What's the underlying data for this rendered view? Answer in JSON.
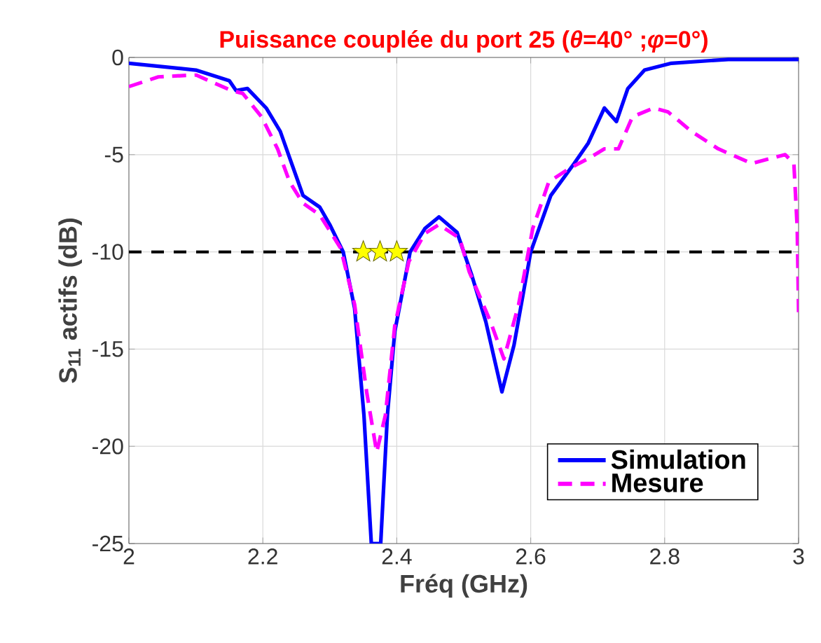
{
  "chart_data": {
    "type": "line",
    "title": "Puissance couplée  du port 25 (*θ*=40° ;*φ*=0°)",
    "xlabel": "Fréq (GHz)",
    "ylabel": "S$_{11}$ actifs (dB)",
    "xlim": [
      2,
      3
    ],
    "ylim": [
      -25,
      0
    ],
    "xticks": [
      2,
      2.2,
      2.4,
      2.6,
      2.8,
      3
    ],
    "yticks": [
      -25,
      -20,
      -15,
      -10,
      -5,
      0
    ],
    "grid": true,
    "legend": "bottom right",
    "ref_lines": [
      {
        "axis": "y",
        "value": -10,
        "color": "#000000",
        "line_style": "dashed"
      }
    ],
    "series": [
      {
        "name": "Simulation",
        "color": "#0000ff",
        "line_style": "solid",
        "x": [
          2.0,
          2.1,
          2.15,
          2.16,
          2.177,
          2.205,
          2.226,
          2.243,
          2.26,
          2.285,
          2.3,
          2.32,
          2.337,
          2.351,
          2.362,
          2.376,
          2.386,
          2.397,
          2.42,
          2.442,
          2.463,
          2.49,
          2.512,
          2.533,
          2.557,
          2.575,
          2.6,
          2.63,
          2.665,
          2.686,
          2.71,
          2.728,
          2.745,
          2.77,
          2.81,
          2.895,
          3.0
        ],
        "values": [
          -0.3,
          -0.65,
          -1.2,
          -1.7,
          -1.6,
          -2.6,
          -3.8,
          -5.45,
          -7.1,
          -7.7,
          -8.6,
          -10.0,
          -12.9,
          -18.4,
          -25,
          -25,
          -18.4,
          -14.1,
          -10.0,
          -8.8,
          -8.2,
          -9.0,
          -11.2,
          -13.6,
          -17.2,
          -14.8,
          -10.0,
          -7.1,
          -5.45,
          -4.4,
          -2.6,
          -3.3,
          -1.6,
          -0.65,
          -0.3,
          -0.1,
          -0.1
        ]
      },
      {
        "name": "Mesure",
        "color": "#ff00ff",
        "line_style": "dashed",
        "x": [
          2.0,
          2.044,
          2.1,
          2.153,
          2.17,
          2.198,
          2.222,
          2.24,
          2.26,
          2.285,
          2.316,
          2.337,
          2.355,
          2.37,
          2.383,
          2.397,
          2.418,
          2.442,
          2.463,
          2.494,
          2.508,
          2.54,
          2.56,
          2.582,
          2.603,
          2.627,
          2.658,
          2.686,
          2.71,
          2.731,
          2.752,
          2.784,
          2.805,
          2.84,
          2.88,
          2.93,
          2.98,
          2.993,
          2.998,
          3.0
        ],
        "values": [
          -1.5,
          -1.0,
          -0.9,
          -1.7,
          -1.85,
          -3.05,
          -4.7,
          -6.4,
          -7.5,
          -8.1,
          -9.8,
          -12.7,
          -17.2,
          -20.3,
          -18.4,
          -13.8,
          -10.5,
          -9.05,
          -8.6,
          -9.3,
          -11.0,
          -13.6,
          -15.5,
          -12.7,
          -8.8,
          -6.4,
          -5.7,
          -5.2,
          -4.7,
          -4.7,
          -3.05,
          -2.6,
          -2.8,
          -3.8,
          -4.7,
          -5.45,
          -5.0,
          -5.45,
          -8.8,
          -13.1
        ]
      },
      {
        "type": "scatter",
        "marker": "star",
        "color": "#ffff00",
        "x": [
          2.35,
          2.375,
          2.4
        ],
        "values": [
          -10,
          -10,
          -10
        ]
      }
    ]
  }
}
